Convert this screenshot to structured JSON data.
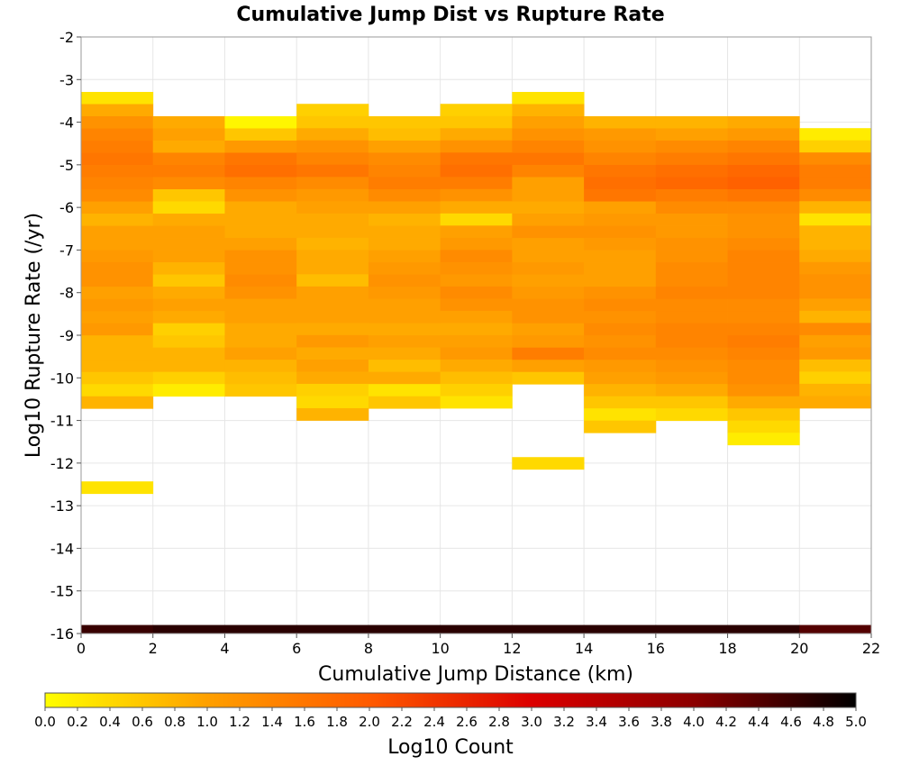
{
  "chart_data": {
    "type": "heatmap",
    "title": "Cumulative Jump Dist vs Rupture Rate",
    "xlabel": "Cumulative Jump Distance (km)",
    "ylabel": "Log10 Rupture Rate (/yr)",
    "xlim": [
      0,
      22
    ],
    "ylim": [
      -16,
      -2
    ],
    "x_ticks": [
      "0",
      "2",
      "4",
      "6",
      "8",
      "10",
      "12",
      "14",
      "16",
      "18",
      "20",
      "22"
    ],
    "y_ticks": [
      "-2",
      "-3",
      "-4",
      "-5",
      "-6",
      "-7",
      "-8",
      "-9",
      "-10",
      "-11",
      "-12",
      "-13",
      "-14",
      "-15",
      "-16"
    ],
    "grid": true,
    "x_bin_width": 2,
    "y_bin_height": 0.2857,
    "colorbar": {
      "label": "Log10 Count",
      "range": [
        0,
        5
      ],
      "ticks": [
        "0.0",
        "0.2",
        "0.4",
        "0.6",
        "0.8",
        "1.0",
        "1.2",
        "1.4",
        "1.6",
        "1.8",
        "2.0",
        "2.2",
        "2.4",
        "2.6",
        "2.8",
        "3.0",
        "3.2",
        "3.4",
        "3.6",
        "3.8",
        "4.0",
        "4.2",
        "4.4",
        "4.6",
        "4.8",
        "5.0"
      ],
      "colors": [
        "#ffff00",
        "#ffa000",
        "#ff5a00",
        "#dc0000",
        "#8c0000",
        "#000000"
      ]
    },
    "columns": [
      {
        "x": 0,
        "top_bin": -3.29,
        "values": [
          0.3,
          0.9,
          1.2,
          1.4,
          1.5,
          1.6,
          1.5,
          1.4,
          1.3,
          1.0,
          0.8,
          1.0,
          1.0,
          1.1,
          1.2,
          1.2,
          1.0,
          1.1,
          1.0,
          1.1,
          0.8,
          0.8,
          0.8,
          0.6,
          0.4,
          0.8
        ],
        "extra": [
          {
            "y_start": -12.43,
            "value": 0.3
          }
        ]
      },
      {
        "x": 2,
        "top_bin": -3.86,
        "values": [
          0.9,
          1.0,
          0.9,
          1.4,
          1.5,
          1.3,
          0.6,
          0.4,
          0.9,
          1.0,
          1.0,
          1.0,
          0.8,
          0.6,
          0.9,
          1.0,
          0.9,
          0.5,
          0.6,
          0.8,
          0.8,
          0.5,
          0.2
        ],
        "extra": []
      },
      {
        "x": 4,
        "top_bin": -3.86,
        "values": [
          0.1,
          0.6,
          1.1,
          1.6,
          1.7,
          1.4,
          1.2,
          0.9,
          0.9,
          0.9,
          1.0,
          1.2,
          1.2,
          1.3,
          1.2,
          1.0,
          1.0,
          0.9,
          0.9,
          1.0,
          0.8,
          0.7,
          0.6
        ],
        "extra": []
      },
      {
        "x": 6,
        "top_bin": -3.57,
        "values": [
          0.5,
          0.6,
          0.9,
          1.2,
          1.4,
          1.6,
          1.3,
          1.1,
          1.0,
          0.9,
          0.9,
          0.8,
          0.9,
          0.9,
          0.7,
          1.0,
          1.0,
          1.0,
          0.9,
          1.1,
          0.9,
          1.0,
          0.9,
          0.5,
          0.4,
          0.8
        ],
        "extra": []
      },
      {
        "x": 8,
        "top_bin": -3.86,
        "values": [
          0.6,
          0.7,
          1.0,
          1.3,
          1.4,
          1.5,
          1.3,
          1.0,
          0.8,
          0.9,
          0.9,
          1.0,
          1.1,
          1.2,
          1.1,
          1.0,
          1.0,
          0.9,
          1.0,
          0.9,
          0.7,
          0.9,
          0.3,
          0.6
        ],
        "extra": []
      },
      {
        "x": 10,
        "top_bin": -3.57,
        "values": [
          0.5,
          0.6,
          0.9,
          1.2,
          1.6,
          1.7,
          1.5,
          1.2,
          0.9,
          0.4,
          1.0,
          1.1,
          1.3,
          1.2,
          1.1,
          1.3,
          1.2,
          1.0,
          0.9,
          1.0,
          1.1,
          0.9,
          0.7,
          0.5,
          0.3
        ],
        "extra": []
      },
      {
        "x": 12,
        "top_bin": -3.29,
        "values": [
          0.3,
          0.8,
          1.0,
          1.2,
          1.4,
          1.6,
          1.4,
          1.0,
          1.0,
          0.9,
          1.0,
          1.2,
          1.0,
          1.0,
          1.1,
          1.0,
          1.1,
          1.2,
          1.2,
          1.0,
          1.1,
          1.5,
          1.0,
          0.6
        ],
        "extra": [
          {
            "y_start": -11.86,
            "value": 0.4
          }
        ]
      },
      {
        "x": 14,
        "top_bin": -3.86,
        "values": [
          0.8,
          1.1,
          1.2,
          1.4,
          1.6,
          1.7,
          1.6,
          1.0,
          1.1,
          1.2,
          1.1,
          1.0,
          1.0,
          1.0,
          1.2,
          1.3,
          1.2,
          1.3,
          1.2,
          1.3,
          1.1,
          1.0,
          0.8,
          0.6,
          0.3,
          0.6
        ],
        "extra": []
      },
      {
        "x": 16,
        "top_bin": -3.86,
        "values": [
          0.8,
          1.0,
          1.3,
          1.5,
          1.7,
          1.8,
          1.5,
          1.3,
          1.1,
          1.1,
          1.2,
          1.2,
          1.3,
          1.3,
          1.4,
          1.3,
          1.3,
          1.4,
          1.4,
          1.3,
          1.2,
          1.1,
          0.9,
          0.6,
          0.4
        ],
        "extra": []
      },
      {
        "x": 18,
        "top_bin": -3.86,
        "values": [
          0.9,
          1.1,
          1.4,
          1.6,
          1.8,
          1.9,
          1.6,
          1.3,
          1.2,
          1.2,
          1.3,
          1.4,
          1.4,
          1.4,
          1.4,
          1.3,
          1.3,
          1.4,
          1.5,
          1.4,
          1.3,
          1.3,
          1.2,
          0.9,
          0.6,
          0.4,
          0.2
        ],
        "extra": []
      },
      {
        "x": 20,
        "top_bin": -4.14,
        "values": [
          0.2,
          0.5,
          1.3,
          1.5,
          1.5,
          1.3,
          0.8,
          0.3,
          0.8,
          0.8,
          0.9,
          1.1,
          1.2,
          1.2,
          1.0,
          0.8,
          1.3,
          1.0,
          1.1,
          0.7,
          0.5,
          0.8,
          0.9
        ],
        "extra": []
      }
    ],
    "baseline_row": {
      "y": -16,
      "values": [
        4.6,
        4.7,
        4.7,
        4.7,
        4.7,
        4.7,
        4.7,
        4.7,
        4.7,
        4.7,
        4.4
      ]
    }
  }
}
